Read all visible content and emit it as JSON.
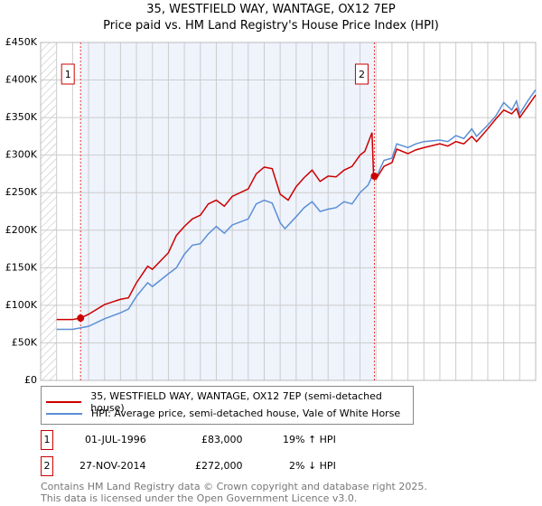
{
  "chart_data": {
    "type": "line",
    "title": "35, WESTFIELD WAY, WANTAGE, OX12 7EP",
    "subtitle": "Price paid vs. HM Land Registry's House Price Index (HPI)",
    "xlim": [
      1994,
      2025
    ],
    "ylim": [
      0,
      450000
    ],
    "x_ticks": [
      "1994",
      "1995",
      "1996",
      "1997",
      "1998",
      "1999",
      "2000",
      "2001",
      "2002",
      "2003",
      "2004",
      "2005",
      "2006",
      "2007",
      "2008",
      "2009",
      "2010",
      "2011",
      "2012",
      "2013",
      "2014",
      "2015",
      "2016",
      "2017",
      "2018",
      "2019",
      "2020",
      "2021",
      "2022",
      "2023",
      "2024",
      "2025"
    ],
    "y_ticks": [
      {
        "v": 0,
        "l": "£0"
      },
      {
        "v": 50000,
        "l": "£50K"
      },
      {
        "v": 100000,
        "l": "£100K"
      },
      {
        "v": 150000,
        "l": "£150K"
      },
      {
        "v": 200000,
        "l": "£200K"
      },
      {
        "v": 250000,
        "l": "£250K"
      },
      {
        "v": 300000,
        "l": "£300K"
      },
      {
        "v": 350000,
        "l": "£350K"
      },
      {
        "v": 400000,
        "l": "£400K"
      },
      {
        "v": 450000,
        "l": "£450K"
      }
    ],
    "grid": true,
    "series": [
      {
        "name": "35, WESTFIELD WAY, WANTAGE, OX12 7EP (semi-detached house)",
        "color": "#cc0000",
        "points": [
          [
            1995,
            81
          ],
          [
            1996,
            81
          ],
          [
            1996.5,
            83
          ],
          [
            1997,
            88
          ],
          [
            1998,
            101
          ],
          [
            1999,
            108
          ],
          [
            1999.5,
            110
          ],
          [
            2000,
            130
          ],
          [
            2000.7,
            152
          ],
          [
            2001,
            148
          ],
          [
            2002,
            170
          ],
          [
            2002.5,
            193
          ],
          [
            2003,
            205
          ],
          [
            2003.5,
            215
          ],
          [
            2004,
            220
          ],
          [
            2004.5,
            235
          ],
          [
            2005,
            240
          ],
          [
            2005.5,
            232
          ],
          [
            2006,
            245
          ],
          [
            2007,
            255
          ],
          [
            2007.5,
            275
          ],
          [
            2008,
            284
          ],
          [
            2008.5,
            282
          ],
          [
            2009,
            248
          ],
          [
            2009.5,
            240
          ],
          [
            2010,
            258
          ],
          [
            2010.5,
            270
          ],
          [
            2011,
            280
          ],
          [
            2011.5,
            265
          ],
          [
            2012,
            272
          ],
          [
            2012.5,
            271
          ],
          [
            2013,
            280
          ],
          [
            2013.5,
            285
          ],
          [
            2014,
            300
          ],
          [
            2014.3,
            305
          ],
          [
            2014.75,
            330
          ],
          [
            2014.85,
            272
          ],
          [
            2015,
            268
          ],
          [
            2015.5,
            285
          ],
          [
            2016,
            290
          ],
          [
            2016.3,
            308
          ],
          [
            2017,
            302
          ],
          [
            2017.5,
            307
          ],
          [
            2018,
            310
          ],
          [
            2019,
            315
          ],
          [
            2019.5,
            312
          ],
          [
            2020,
            318
          ],
          [
            2020.5,
            315
          ],
          [
            2021,
            325
          ],
          [
            2021.3,
            318
          ],
          [
            2022,
            335
          ],
          [
            2022.5,
            348
          ],
          [
            2023,
            360
          ],
          [
            2023.5,
            355
          ],
          [
            2023.8,
            362
          ],
          [
            2024,
            350
          ],
          [
            2024.5,
            365
          ],
          [
            2025,
            380
          ]
        ]
      },
      {
        "name": "HPI: Average price, semi-detached house, Vale of White Horse",
        "color": "#5b8fd6",
        "points": [
          [
            1995,
            68
          ],
          [
            1996,
            68
          ],
          [
            1997,
            72
          ],
          [
            1998,
            82
          ],
          [
            1999,
            90
          ],
          [
            1999.5,
            95
          ],
          [
            2000,
            112
          ],
          [
            2000.7,
            130
          ],
          [
            2001,
            125
          ],
          [
            2002,
            142
          ],
          [
            2002.5,
            150
          ],
          [
            2003,
            168
          ],
          [
            2003.5,
            180
          ],
          [
            2004,
            182
          ],
          [
            2004.5,
            195
          ],
          [
            2005,
            205
          ],
          [
            2005.5,
            196
          ],
          [
            2006,
            207
          ],
          [
            2007,
            215
          ],
          [
            2007.5,
            235
          ],
          [
            2008,
            240
          ],
          [
            2008.5,
            236
          ],
          [
            2009,
            210
          ],
          [
            2009.3,
            202
          ],
          [
            2010,
            218
          ],
          [
            2010.5,
            230
          ],
          [
            2011,
            238
          ],
          [
            2011.5,
            225
          ],
          [
            2012,
            228
          ],
          [
            2012.5,
            230
          ],
          [
            2013,
            238
          ],
          [
            2013.5,
            235
          ],
          [
            2014,
            250
          ],
          [
            2014.5,
            260
          ],
          [
            2014.85,
            276
          ],
          [
            2015,
            270
          ],
          [
            2015.5,
            293
          ],
          [
            2016,
            296
          ],
          [
            2016.3,
            315
          ],
          [
            2017,
            310
          ],
          [
            2017.5,
            315
          ],
          [
            2018,
            318
          ],
          [
            2019,
            320
          ],
          [
            2019.5,
            318
          ],
          [
            2020,
            326
          ],
          [
            2020.5,
            322
          ],
          [
            2021,
            335
          ],
          [
            2021.3,
            325
          ],
          [
            2022,
            340
          ],
          [
            2022.5,
            352
          ],
          [
            2023,
            370
          ],
          [
            2023.5,
            360
          ],
          [
            2023.8,
            372
          ],
          [
            2024,
            355
          ],
          [
            2024.5,
            372
          ],
          [
            2025,
            387
          ]
        ]
      }
    ],
    "value_unit": "thousands GBP",
    "sales": [
      {
        "label": "1",
        "x": 1996.5,
        "value": 83000
      },
      {
        "label": "2",
        "x": 2014.9,
        "value": 272000
      }
    ]
  },
  "sales_table": [
    {
      "num": "1",
      "date": "01-JUL-1996",
      "price": "£83,000",
      "hpi": "19% ↑ HPI"
    },
    {
      "num": "2",
      "date": "27-NOV-2014",
      "price": "£272,000",
      "hpi": "2% ↓ HPI"
    }
  ],
  "footer": {
    "line1": "Contains HM Land Registry data © Crown copyright and database right 2025.",
    "line2": "This data is licensed under the Open Government Licence v3.0."
  }
}
